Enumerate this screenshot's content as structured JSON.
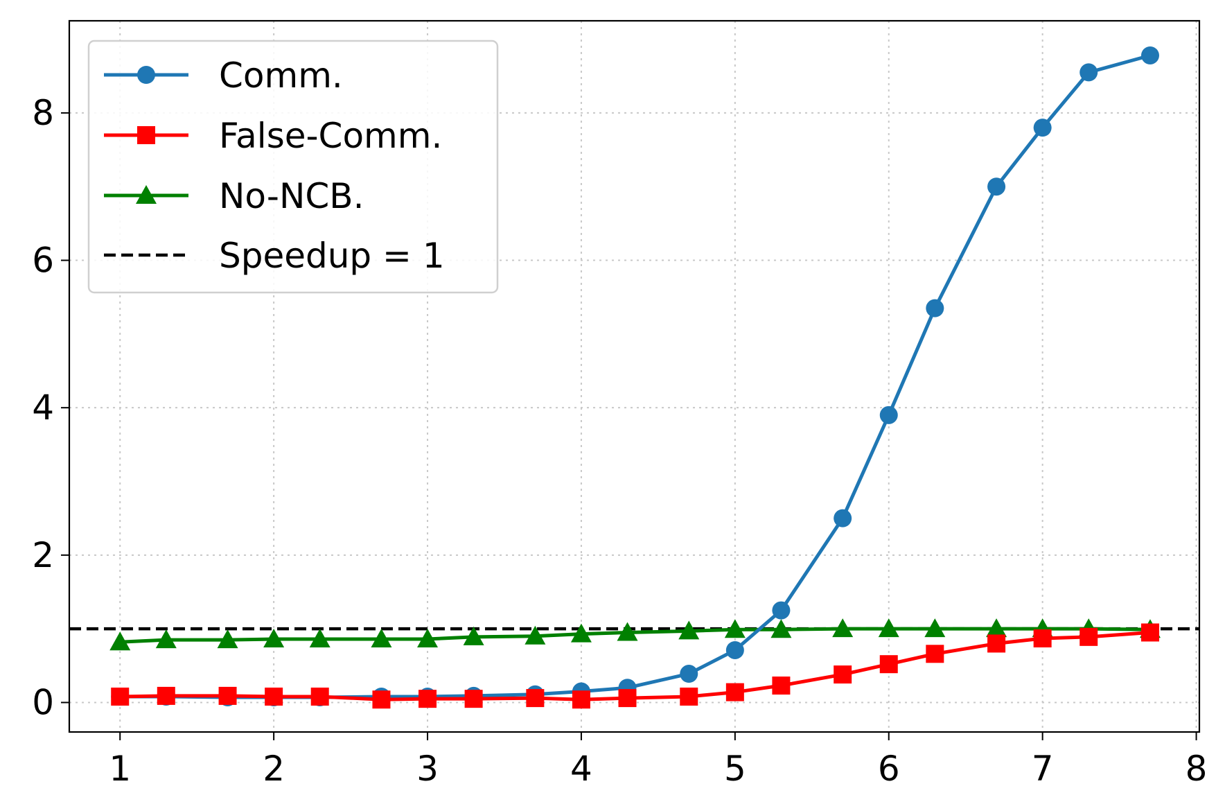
{
  "chart_data": {
    "type": "line",
    "title": "",
    "xlabel": "",
    "ylabel": "",
    "xlim": [
      0.67,
      8.02
    ],
    "ylim": [
      -0.4,
      9.25
    ],
    "xticks": [
      1,
      2,
      3,
      4,
      5,
      6,
      7,
      8
    ],
    "yticks": [
      0,
      2,
      4,
      6,
      8
    ],
    "grid": true,
    "legend_position": "top-left",
    "x": [
      1.0,
      1.3,
      1.7,
      2.0,
      2.3,
      2.7,
      3.0,
      3.3,
      3.7,
      4.0,
      4.3,
      4.7,
      5.0,
      5.3,
      5.7,
      6.0,
      6.3,
      6.7,
      7.0,
      7.3,
      7.7
    ],
    "series": [
      {
        "name": "Comm.",
        "color": "#1f77b4",
        "marker": "circle",
        "values": [
          0.08,
          0.08,
          0.07,
          0.07,
          0.07,
          0.08,
          0.08,
          0.09,
          0.11,
          0.15,
          0.2,
          0.39,
          0.71,
          1.25,
          2.5,
          3.9,
          5.35,
          7.0,
          7.8,
          8.55,
          8.78
        ]
      },
      {
        "name": "False-Comm.",
        "color": "#ff0000",
        "marker": "square",
        "values": [
          0.08,
          0.09,
          0.09,
          0.08,
          0.08,
          0.04,
          0.05,
          0.05,
          0.06,
          0.04,
          0.06,
          0.08,
          0.14,
          0.23,
          0.38,
          0.52,
          0.66,
          0.8,
          0.87,
          0.89,
          0.95
        ]
      },
      {
        "name": "No-NCB.",
        "color": "#008000",
        "marker": "triangle",
        "values": [
          0.82,
          0.85,
          0.85,
          0.86,
          0.86,
          0.86,
          0.86,
          0.89,
          0.9,
          0.93,
          0.95,
          0.97,
          0.99,
          0.99,
          1.0,
          1.0,
          1.0,
          1.0,
          1.0,
          1.0,
          0.99
        ]
      }
    ],
    "reference_line": {
      "name": "Speedup = 1",
      "y": 1,
      "color": "#000000",
      "style": "dashed"
    }
  }
}
